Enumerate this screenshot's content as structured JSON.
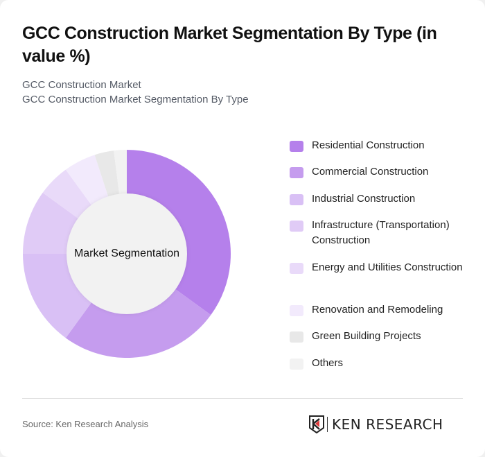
{
  "header": {
    "title": "GCC Construction Market Segmentation By Type (in value %)",
    "subtitle_line1": "GCC Construction Market",
    "subtitle_line2": "GCC Construction Market Segmentation By Type"
  },
  "chart": {
    "center_label": "Market Segmentation"
  },
  "legend": {
    "items": [
      {
        "label": "Residential Construction",
        "color": "#b580eb"
      },
      {
        "label": "Commercial Construction",
        "color": "#c59cee"
      },
      {
        "label": "Industrial Construction",
        "color": "#d9c0f5"
      },
      {
        "label": "Infrastructure (Transportation) Construction",
        "color": "#e0cbf6"
      },
      {
        "label": "Energy and Utilities Construction",
        "color": "#e9daf9"
      },
      {
        "label": "Renovation and Remodeling",
        "color": "#f2eafc"
      },
      {
        "label": "Green Building Projects",
        "color": "#e8e8e8"
      },
      {
        "label": "Others",
        "color": "#f2f2f2"
      }
    ]
  },
  "footer": {
    "source": "Source: Ken Research Analysis",
    "logo_text": "KEN RESEARCH"
  },
  "chart_data": {
    "type": "pie",
    "variant": "donut",
    "title": "GCC Construction Market Segmentation By Type (in value %)",
    "subtitle": "GCC Construction Market Segmentation By Type",
    "center_label": "Market Segmentation",
    "categories": [
      "Residential Construction",
      "Commercial Construction",
      "Industrial Construction",
      "Infrastructure (Transportation) Construction",
      "Energy and Utilities Construction",
      "Renovation and Remodeling",
      "Green Building Projects",
      "Others"
    ],
    "values": [
      35,
      25,
      15,
      10,
      5,
      5,
      3,
      2
    ],
    "colors": [
      "#b580eb",
      "#c59cee",
      "#d9c0f5",
      "#e0cbf6",
      "#e9daf9",
      "#f2eafc",
      "#e8e8e8",
      "#f2f2f2"
    ],
    "unit": "%",
    "start_angle": "12 o'clock, clockwise",
    "legend_position": "right"
  }
}
